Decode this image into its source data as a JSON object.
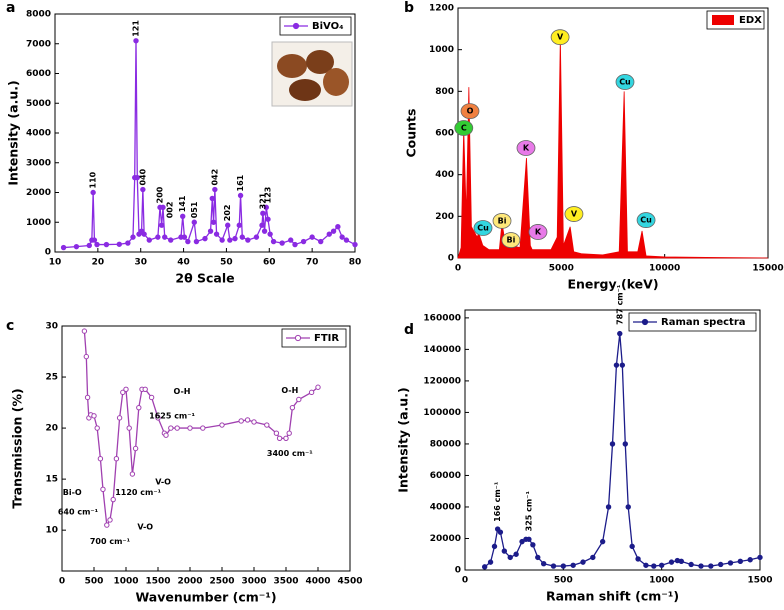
{
  "chart_data": [
    {
      "type": "line",
      "panel": "a",
      "xlabel": "2θ Scale",
      "ylabel": "Intensity (a.u.)",
      "x": [
        12,
        15,
        18,
        18.6,
        18.9,
        19.2,
        19.8,
        22,
        25,
        27,
        28.2,
        28.6,
        28.9,
        29.2,
        29.6,
        30.2,
        30.5,
        30.8,
        32,
        34,
        34.5,
        34.9,
        35.2,
        35.6,
        37,
        39.4,
        39.8,
        40.2,
        41,
        42.5,
        43,
        45,
        46.3,
        46.7,
        47,
        47.3,
        47.7,
        49,
        50.3,
        50.8,
        52,
        53,
        53.3,
        53.7,
        55,
        57,
        58.3,
        58.5,
        58.9,
        59.3,
        59.7,
        60.2,
        61,
        63,
        65,
        66,
        68,
        70,
        72,
        74,
        75,
        76,
        77,
        78,
        80
      ],
      "series": [
        {
          "name": "BiVO₄",
          "color": "#8a2be2",
          "marker": "filled",
          "values": [
            150,
            180,
            220,
            400,
            2000,
            400,
            250,
            250,
            260,
            300,
            500,
            2500,
            7100,
            2500,
            600,
            700,
            2100,
            600,
            400,
            500,
            1500,
            900,
            1500,
            500,
            400,
            500,
            1200,
            500,
            350,
            1000,
            350,
            450,
            700,
            1800,
            1000,
            2100,
            600,
            400,
            900,
            400,
            450,
            900,
            1900,
            500,
            400,
            500,
            900,
            1300,
            700,
            1500,
            1100,
            600,
            350,
            300,
            400,
            250,
            350,
            500,
            350,
            600,
            700,
            850,
            500,
            400,
            250
          ]
        }
      ],
      "xlim": [
        10,
        80
      ],
      "xticks": [
        10,
        20,
        30,
        40,
        50,
        60,
        70,
        80
      ],
      "ylim": [
        0,
        8000
      ],
      "yticks": [
        0,
        1000,
        2000,
        3000,
        4000,
        5000,
        6000,
        7000,
        8000
      ],
      "legend": "upper right",
      "annotations": [
        {
          "text": "110",
          "x": 18.9,
          "y": 2000,
          "rotate": true
        },
        {
          "text": "121",
          "x": 28.9,
          "y": 7100,
          "rotate": true
        },
        {
          "text": "040",
          "x": 30.5,
          "y": 2100,
          "rotate": true
        },
        {
          "text": "200",
          "x": 34.5,
          "y": 1500,
          "rotate": true
        },
        {
          "text": "002",
          "x": 36.8,
          "y": 1000,
          "rotate": true
        },
        {
          "text": "141",
          "x": 39.8,
          "y": 1200,
          "rotate": true
        },
        {
          "text": "051",
          "x": 42.5,
          "y": 1000,
          "rotate": true
        },
        {
          "text": "042",
          "x": 47.3,
          "y": 2100,
          "rotate": true
        },
        {
          "text": "202",
          "x": 50.3,
          "y": 900,
          "rotate": true
        },
        {
          "text": "161",
          "x": 53.3,
          "y": 1900,
          "rotate": true
        },
        {
          "text": "321",
          "x": 58.5,
          "y": 1300,
          "rotate": true
        },
        {
          "text": "123",
          "x": 59.7,
          "y": 1500,
          "rotate": true
        }
      ]
    },
    {
      "type": "area",
      "panel": "b",
      "xlabel": "Energy (keV)",
      "ylabel": "Counts",
      "x": [
        0,
        150,
        277,
        400,
        525,
        650,
        930,
        1000,
        1200,
        1500,
        2000,
        2130,
        2300,
        2420,
        2600,
        3000,
        3313,
        3500,
        3590,
        4000,
        4500,
        4800,
        4952,
        5100,
        5427,
        5600,
        6000,
        7000,
        7800,
        8040,
        8200,
        8700,
        8905,
        9100,
        10000,
        12000,
        15000
      ],
      "series": [
        {
          "name": "EDX",
          "color": "#ee0000",
          "values": [
            0,
            50,
            620,
            200,
            820,
            150,
            100,
            120,
            60,
            40,
            40,
            170,
            60,
            110,
            60,
            50,
            480,
            60,
            40,
            40,
            40,
            100,
            1060,
            60,
            150,
            30,
            20,
            15,
            30,
            800,
            30,
            30,
            130,
            10,
            5,
            3,
            0
          ]
        }
      ],
      "xlim": [
        0,
        15000
      ],
      "xticks": [
        0,
        5000,
        10000,
        15000
      ],
      "ylim": [
        0,
        1200
      ],
      "yticks": [
        0,
        200,
        400,
        600,
        800,
        1000,
        1200
      ],
      "legend": "upper right",
      "annotations": [
        {
          "text": "C",
          "x": 280,
          "y": 624,
          "color": "#33cc33"
        },
        {
          "text": "O",
          "x": 580,
          "y": 705,
          "color": "#f08040"
        },
        {
          "text": "Cu",
          "x": 1210,
          "y": 144,
          "color": "#33d6e0"
        },
        {
          "text": "Bi",
          "x": 2130,
          "y": 178,
          "color": "#ffe87a"
        },
        {
          "text": "Bi",
          "x": 2560,
          "y": 86,
          "color": "#ffe87a"
        },
        {
          "text": "K",
          "x": 3290,
          "y": 528,
          "color": "#e87ae8"
        },
        {
          "text": "K",
          "x": 3870,
          "y": 125,
          "color": "#e87ae8"
        },
        {
          "text": "V",
          "x": 4940,
          "y": 1060,
          "color": "#ffee22"
        },
        {
          "text": "V",
          "x": 5610,
          "y": 211,
          "color": "#ffee22"
        },
        {
          "text": "Cu",
          "x": 8080,
          "y": 845,
          "color": "#33d6e0"
        },
        {
          "text": "Cu",
          "x": 9100,
          "y": 182,
          "color": "#33d6e0"
        }
      ]
    },
    {
      "type": "line",
      "panel": "c",
      "xlabel": "Wavenumber  (cm⁻¹)",
      "ylabel": "Transmission (%)",
      "x": [
        350,
        380,
        400,
        420,
        450,
        500,
        550,
        600,
        640,
        700,
        750,
        800,
        850,
        900,
        950,
        1000,
        1050,
        1100,
        1150,
        1200,
        1250,
        1300,
        1400,
        1500,
        1600,
        1625,
        1700,
        1800,
        2000,
        2200,
        2500,
        2800,
        2900,
        3000,
        3200,
        3350,
        3400,
        3500,
        3550,
        3600,
        3700,
        3900,
        4000
      ],
      "series": [
        {
          "name": "FTIR",
          "color": "#a040b0",
          "marker": "open",
          "values": [
            29.5,
            27,
            23,
            21,
            21.3,
            21.2,
            20,
            17,
            14,
            10.5,
            11,
            13,
            17,
            21,
            23.5,
            23.8,
            20,
            15.5,
            18,
            22,
            23.8,
            23.8,
            23,
            21,
            19.5,
            19.3,
            20,
            20,
            20,
            20,
            20.3,
            20.7,
            20.8,
            20.6,
            20.3,
            19.5,
            19,
            19,
            19.5,
            22,
            22.8,
            23.5,
            24
          ]
        }
      ],
      "xlim": [
        0,
        4500
      ],
      "xticks": [
        0,
        500,
        1000,
        1500,
        2000,
        2500,
        3000,
        3500,
        4000,
        4500
      ],
      "ylim": [
        6,
        30
      ],
      "yticks": [
        10,
        15,
        20,
        25,
        30
      ],
      "legend": "upper right",
      "annotations": [
        {
          "text": "Bi-O",
          "x": 160,
          "y": 13.7
        },
        {
          "text": "640 cm⁻¹",
          "x": 250,
          "y": 11.8
        },
        {
          "text": "700 cm⁻¹",
          "x": 750,
          "y": 8.9
        },
        {
          "text": "V-O",
          "x": 1300,
          "y": 10.3
        },
        {
          "text": "1120 cm⁻¹",
          "x": 1190,
          "y": 13.7
        },
        {
          "text": "V-O",
          "x": 1580,
          "y": 14.7
        },
        {
          "text": "1625 cm⁻¹",
          "x": 1720,
          "y": 21.2
        },
        {
          "text": "O-H",
          "x": 1875,
          "y": 23.6
        },
        {
          "text": "3400 cm⁻¹",
          "x": 3560,
          "y": 17.5
        },
        {
          "text": "O-H",
          "x": 3560,
          "y": 23.7
        }
      ]
    },
    {
      "type": "line",
      "panel": "d",
      "xlabel": "Raman shift (cm⁻¹)",
      "ylabel": "Intensity (a.u.)",
      "x": [
        100,
        130,
        150,
        166,
        180,
        200,
        230,
        260,
        290,
        310,
        325,
        345,
        370,
        400,
        450,
        500,
        550,
        600,
        650,
        700,
        730,
        750,
        770,
        787,
        800,
        815,
        830,
        850,
        880,
        920,
        960,
        1000,
        1050,
        1080,
        1100,
        1150,
        1200,
        1250,
        1300,
        1350,
        1400,
        1450,
        1500
      ],
      "series": [
        {
          "name": "Raman spectra",
          "color": "#1c1c8a",
          "marker": "filled",
          "values": [
            2000,
            5000,
            15000,
            26000,
            24000,
            12000,
            8000,
            10000,
            18000,
            19500,
            19500,
            16000,
            8000,
            4000,
            2500,
            2500,
            3000,
            5000,
            8000,
            18000,
            40000,
            80000,
            130000,
            150000,
            130000,
            80000,
            40000,
            15000,
            7000,
            3000,
            2500,
            3000,
            5000,
            6000,
            5500,
            3500,
            2500,
            2500,
            3500,
            4500,
            5500,
            6500,
            8000
          ]
        }
      ],
      "xlim": [
        0,
        1500
      ],
      "xticks": [
        0,
        500,
        1000,
        1500
      ],
      "ylim": [
        0,
        165000
      ],
      "yticks": [
        0,
        20000,
        40000,
        60000,
        80000,
        100000,
        120000,
        140000,
        160000
      ],
      "legend": "upper right",
      "annotations": [
        {
          "text": "166 cm⁻¹",
          "x": 166,
          "y": 28000,
          "rotate": true
        },
        {
          "text": "325 cm⁻¹",
          "x": 325,
          "y": 22000,
          "rotate": true
        },
        {
          "text": "787 cm⁻¹",
          "x": 787,
          "y": 153000,
          "rotate": true
        }
      ]
    }
  ]
}
